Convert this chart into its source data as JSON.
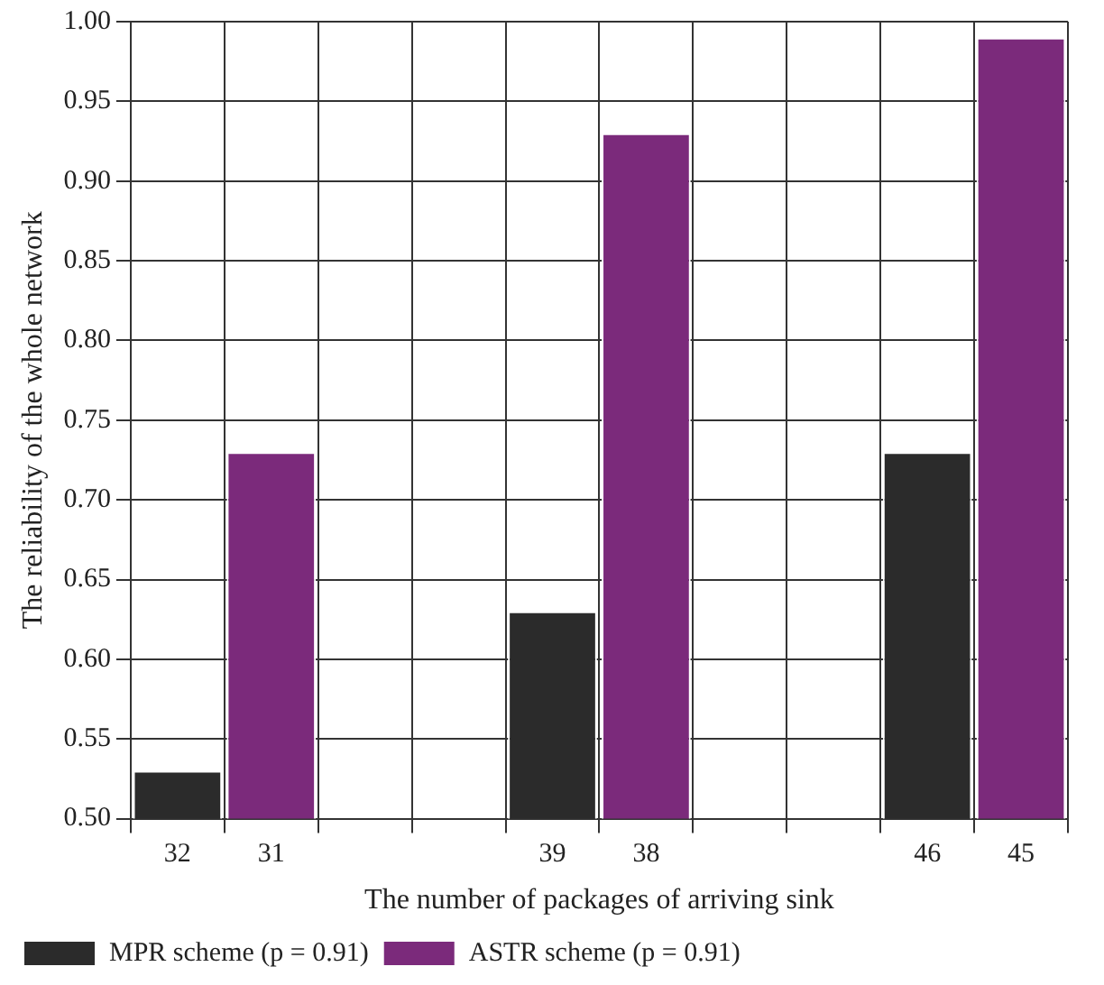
{
  "chart_data": {
    "type": "bar",
    "xlabel": "The number of packages of arriving sink",
    "ylabel": "The reliability of the whole network",
    "categories": [
      "32",
      "31",
      null,
      null,
      "39",
      "38",
      null,
      null,
      "46",
      "45"
    ],
    "series": [
      {
        "name": "MPR scheme (p = 0.91)",
        "color": "#2b2b2b",
        "values": [
          0.53,
          null,
          null,
          null,
          0.63,
          null,
          null,
          null,
          0.73,
          null
        ]
      },
      {
        "name": "ASTR scheme (p = 0.91)",
        "color": "#7b2a7b",
        "values": [
          null,
          0.73,
          null,
          null,
          null,
          0.93,
          null,
          null,
          null,
          0.99
        ]
      }
    ],
    "ylim": [
      0.5,
      1.0
    ],
    "yticks": [
      {
        "value": 0.5,
        "label": "0.50"
      },
      {
        "value": 0.55,
        "label": "0.55"
      },
      {
        "value": 0.6,
        "label": "0.60"
      },
      {
        "value": 0.65,
        "label": "0.65"
      },
      {
        "value": 0.7,
        "label": "0.70"
      },
      {
        "value": 0.75,
        "label": "0.75"
      },
      {
        "value": 0.8,
        "label": "0.80"
      },
      {
        "value": 0.85,
        "label": "0.85"
      },
      {
        "value": 0.9,
        "label": "0.90"
      },
      {
        "value": 0.95,
        "label": "0.95"
      },
      {
        "value": 1.0,
        "label": "1.00"
      }
    ],
    "grid": true,
    "legend": "bottom left"
  }
}
